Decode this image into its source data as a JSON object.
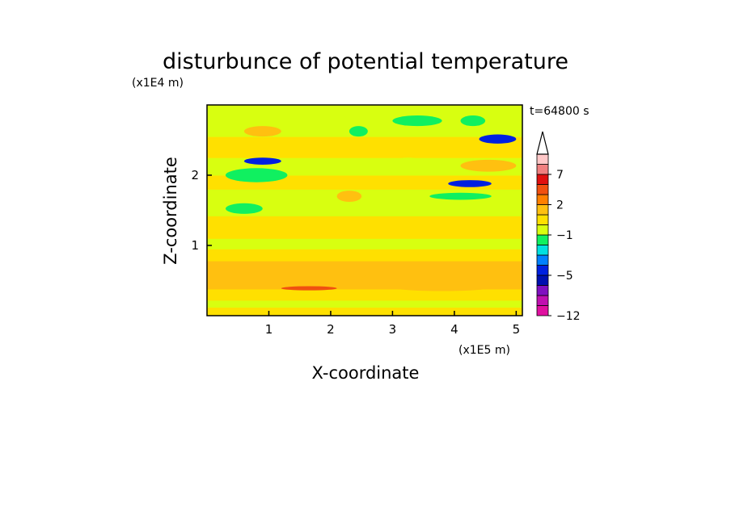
{
  "chart_data": {
    "type": "heatmap",
    "title": "disturbunce of potential temperature",
    "time_label": "t=64800 s",
    "xlabel": "X-coordinate",
    "ylabel": "Z-coordinate",
    "x_unit": "(x1E5 m)",
    "y_unit": "(x1E4 m)",
    "xlim": [
      0,
      5.1
    ],
    "ylim": [
      0,
      3.0
    ],
    "x_ticks": [
      1,
      2,
      3,
      4,
      5
    ],
    "x_tick_labels": [
      "1",
      "2",
      "3",
      "4",
      "5"
    ],
    "y_ticks": [
      1,
      2
    ],
    "y_tick_labels": [
      "1",
      "2"
    ],
    "colorbar": {
      "labels": [
        {
          "text": "7",
          "level": 7
        },
        {
          "text": "2",
          "level": 2
        },
        {
          "text": "−1",
          "level": -1
        },
        {
          "text": "−5",
          "level": -5
        },
        {
          "text": "−12",
          "level": -12
        }
      ],
      "levels": [
        -12,
        -10,
        -8,
        -6,
        -5,
        -4,
        -3,
        -2,
        -1,
        0,
        1,
        2,
        3,
        5,
        7,
        9
      ],
      "colors": [
        "#e010a0",
        "#c010b0",
        "#8010c0",
        "#0010b0",
        "#0020e0",
        "#0080ff",
        "#00e0e0",
        "#10f060",
        "#d8ff10",
        "#ffe000",
        "#ffc010",
        "#ff8000",
        "#f05010",
        "#e01010",
        "#f08080",
        "#ffc8c8"
      ],
      "extend_top": true
    },
    "z_bands": [
      {
        "z": [
          0.0,
          0.12
        ],
        "level": 0
      },
      {
        "z": [
          0.12,
          0.22
        ],
        "level": -1
      },
      {
        "z": [
          0.22,
          0.38
        ],
        "level": 0
      },
      {
        "z": [
          0.38,
          0.78
        ],
        "level": 1
      },
      {
        "z": [
          0.78,
          0.95
        ],
        "level": 0
      },
      {
        "z": [
          0.95,
          1.1
        ],
        "level": -1
      },
      {
        "z": [
          1.1,
          1.42
        ],
        "level": 0
      },
      {
        "z": [
          1.42,
          1.8
        ],
        "level": -1
      },
      {
        "z": [
          1.8,
          2.0
        ],
        "level": 0
      },
      {
        "z": [
          2.0,
          2.25
        ],
        "level": -1
      },
      {
        "z": [
          2.25,
          2.55
        ],
        "level": 0
      },
      {
        "z": [
          2.55,
          3.0
        ],
        "level": -1
      }
    ],
    "features": [
      {
        "x": [
          0.4,
          2.3
        ],
        "z": [
          0.55,
          0.72
        ],
        "level": 1
      },
      {
        "x": [
          2.5,
          5.1
        ],
        "z": [
          0.35,
          0.68
        ],
        "level": 1
      },
      {
        "x": [
          1.2,
          2.1
        ],
        "z": [
          0.36,
          0.42
        ],
        "level": 3
      },
      {
        "x": [
          0.3,
          1.3
        ],
        "z": [
          1.9,
          2.1
        ],
        "level": -2
      },
      {
        "x": [
          0.6,
          1.2
        ],
        "z": [
          2.15,
          2.25
        ],
        "level": -5
      },
      {
        "x": [
          0.3,
          0.9
        ],
        "z": [
          1.45,
          1.6
        ],
        "level": -2
      },
      {
        "x": [
          3.6,
          4.6
        ],
        "z": [
          1.65,
          1.75
        ],
        "level": -2
      },
      {
        "x": [
          3.9,
          4.6
        ],
        "z": [
          1.83,
          1.93
        ],
        "level": -5
      },
      {
        "x": [
          4.4,
          5.0
        ],
        "z": [
          2.45,
          2.58
        ],
        "level": -5
      },
      {
        "x": [
          4.1,
          5.0
        ],
        "z": [
          2.05,
          2.22
        ],
        "level": 1
      },
      {
        "x": [
          0.6,
          1.2
        ],
        "z": [
          2.55,
          2.7
        ],
        "level": 1
      },
      {
        "x": [
          2.9,
          3.6
        ],
        "z": [
          2.0,
          2.25
        ],
        "level": -1
      },
      {
        "x": [
          1.9,
          2.3
        ],
        "z": [
          2.65,
          2.85
        ],
        "level": -1
      },
      {
        "x": [
          2.3,
          2.6
        ],
        "z": [
          2.55,
          2.7
        ],
        "level": -2
      },
      {
        "x": [
          3.0,
          3.8
        ],
        "z": [
          2.7,
          2.85
        ],
        "level": -2
      },
      {
        "x": [
          4.1,
          4.5
        ],
        "z": [
          2.7,
          2.85
        ],
        "level": -2
      },
      {
        "x": [
          2.1,
          2.5
        ],
        "z": [
          1.62,
          1.78
        ],
        "level": 1
      }
    ]
  }
}
